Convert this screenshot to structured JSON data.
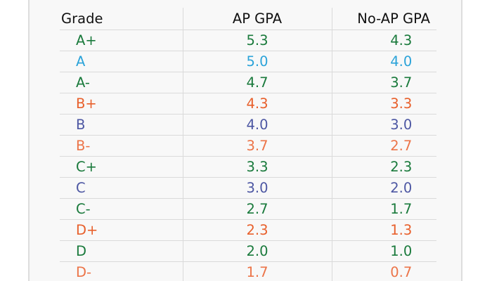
{
  "table": {
    "headers": {
      "grade": "Grade",
      "ap_gpa": "AP GPA",
      "no_ap_gpa": "No-AP GPA"
    },
    "rows": [
      {
        "grade": "A+",
        "ap": "5.3",
        "noap": "4.3",
        "color": "#1a7a3c"
      },
      {
        "grade": "A",
        "ap": "5.0",
        "noap": "4.0",
        "color": "#2ba3d9"
      },
      {
        "grade": "A-",
        "ap": "4.7",
        "noap": "3.7",
        "color": "#1a7a3c"
      },
      {
        "grade": "B+",
        "ap": "4.3",
        "noap": "3.3",
        "color": "#e8602c"
      },
      {
        "grade": "B",
        "ap": "4.0",
        "noap": "3.0",
        "color": "#4d57a3"
      },
      {
        "grade": "B-",
        "ap": "3.7",
        "noap": "2.7",
        "color": "#ec7448"
      },
      {
        "grade": "C+",
        "ap": "3.3",
        "noap": "2.3",
        "color": "#1a7a3c"
      },
      {
        "grade": "C",
        "ap": "3.0",
        "noap": "2.0",
        "color": "#4d57a3"
      },
      {
        "grade": "C-",
        "ap": "2.7",
        "noap": "1.7",
        "color": "#1a7a3c"
      },
      {
        "grade": "D+",
        "ap": "2.3",
        "noap": "1.3",
        "color": "#e8602c"
      },
      {
        "grade": "D",
        "ap": "2.0",
        "noap": "1.0",
        "color": "#1a7a3c"
      },
      {
        "grade": "D-",
        "ap": "1.7",
        "noap": "0.7",
        "color": "#ec7448"
      }
    ]
  }
}
